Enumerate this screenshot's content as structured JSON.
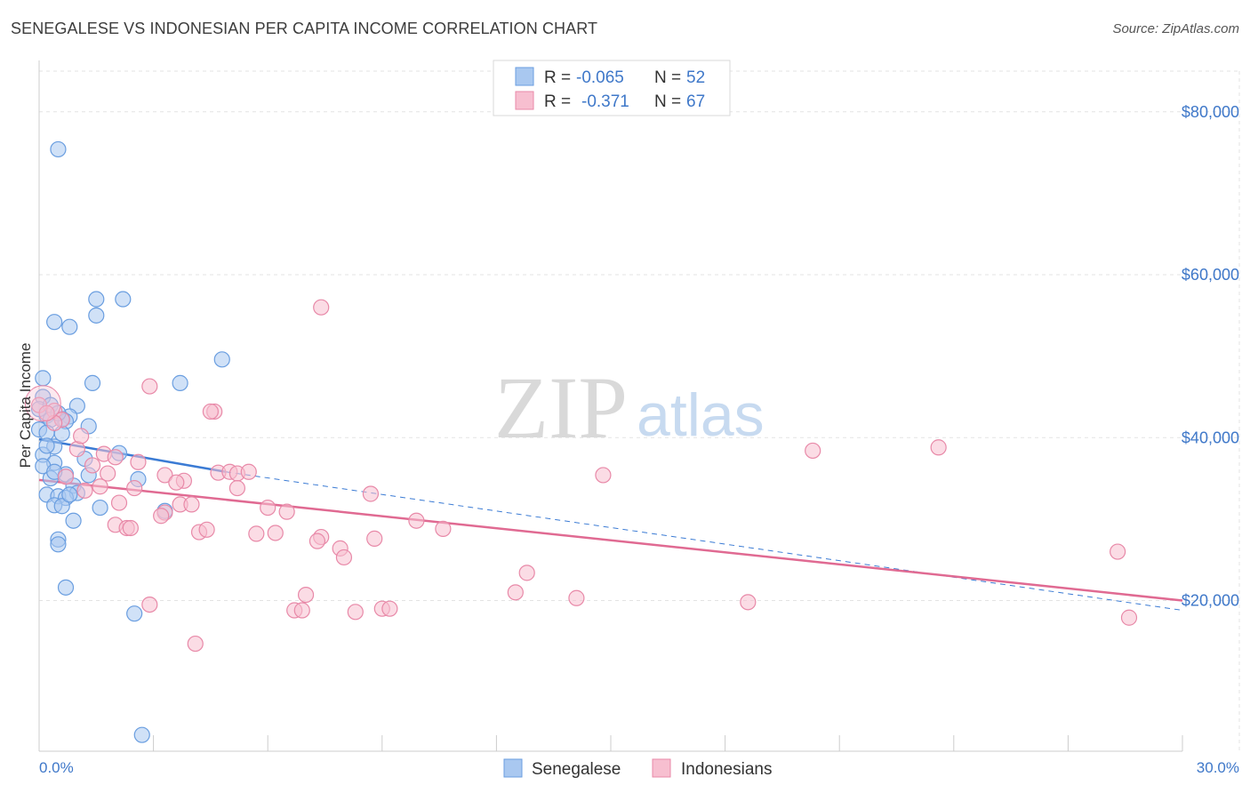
{
  "title": "SENEGALESE VS INDONESIAN PER CAPITA INCOME CORRELATION CHART",
  "source": "Source: ZipAtlas.com",
  "watermark": {
    "part1": "ZIP",
    "part2": "atlas"
  },
  "legend_top": [
    {
      "r_label": "R =",
      "r_value": "-0.065",
      "n_label": "N =",
      "n_value": "52",
      "color": "#a9c8f0",
      "stroke": "#6a9ee0"
    },
    {
      "r_label": "R =",
      "r_value": "-0.371",
      "n_label": "N =",
      "n_value": "67",
      "color": "#f7bfd0",
      "stroke": "#e889a8"
    }
  ],
  "legend_bottom": [
    {
      "label": "Senegalese",
      "color": "#a9c8f0",
      "stroke": "#6a9ee0"
    },
    {
      "label": "Indonesians",
      "color": "#f7bfd0",
      "stroke": "#e889a8"
    }
  ],
  "chart_data": {
    "type": "scatter",
    "title": "SENEGALESE VS INDONESIAN PER CAPITA INCOME CORRELATION CHART",
    "xlabel": "",
    "ylabel": "Per Capita Income",
    "xlim": [
      0,
      30
    ],
    "ylim": [
      1500,
      85000
    ],
    "x_tick_labels": [
      "0.0%",
      "30.0%"
    ],
    "y_ticks": [
      20000,
      40000,
      60000,
      80000
    ],
    "y_tick_labels": [
      "$20,000",
      "$40,000",
      "$60,000",
      "$80,000"
    ],
    "grid": true,
    "series": [
      {
        "name": "Senegalese",
        "color": "#6a9ee0",
        "fill": "#a9c8f0",
        "trend": {
          "x0": 0.0,
          "y0": 39800,
          "x1": 4.9,
          "y1": 35800,
          "dash_to_x": 30.0,
          "dash_to_y": 18800
        },
        "points": [
          [
            0.5,
            75400
          ],
          [
            1.5,
            57000
          ],
          [
            2.2,
            57000
          ],
          [
            1.5,
            55000
          ],
          [
            0.4,
            54200
          ],
          [
            0.8,
            53600
          ],
          [
            4.8,
            49600
          ],
          [
            0.1,
            47300
          ],
          [
            1.4,
            46700
          ],
          [
            3.7,
            46700
          ],
          [
            0.1,
            45000
          ],
          [
            1.0,
            43900
          ],
          [
            0.2,
            42700
          ],
          [
            0.8,
            42600
          ],
          [
            0.3,
            42200
          ],
          [
            0.6,
            42300
          ],
          [
            0.7,
            42000
          ],
          [
            1.3,
            41400
          ],
          [
            0.0,
            41000
          ],
          [
            0.2,
            40600
          ],
          [
            0.4,
            38900
          ],
          [
            0.1,
            37900
          ],
          [
            2.1,
            38100
          ],
          [
            1.2,
            37400
          ],
          [
            0.4,
            36900
          ],
          [
            0.7,
            35500
          ],
          [
            1.3,
            35400
          ],
          [
            0.3,
            35000
          ],
          [
            2.6,
            34900
          ],
          [
            0.9,
            34100
          ],
          [
            0.2,
            33000
          ],
          [
            1.0,
            33200
          ],
          [
            0.5,
            32800
          ],
          [
            0.7,
            32600
          ],
          [
            0.4,
            31700
          ],
          [
            0.6,
            31600
          ],
          [
            1.6,
            31400
          ],
          [
            3.3,
            31000
          ],
          [
            0.9,
            29800
          ],
          [
            0.5,
            27500
          ],
          [
            0.5,
            26900
          ],
          [
            0.7,
            21600
          ],
          [
            2.5,
            18400
          ],
          [
            2.7,
            3500
          ],
          [
            0.0,
            43500
          ],
          [
            0.3,
            44000
          ],
          [
            0.5,
            43000
          ],
          [
            0.1,
            36500
          ],
          [
            0.4,
            35800
          ],
          [
            0.8,
            33000
          ],
          [
            0.2,
            39000
          ],
          [
            0.6,
            40500
          ]
        ]
      },
      {
        "name": "Indonesians",
        "color": "#e889a8",
        "fill": "#f7bfd0",
        "trend": {
          "x0": 0.0,
          "y0": 34800,
          "x1": 30.0,
          "y1": 20000
        },
        "points": [
          [
            0.0,
            44000
          ],
          [
            0.4,
            43300
          ],
          [
            0.6,
            42200
          ],
          [
            0.4,
            41800
          ],
          [
            7.4,
            56000
          ],
          [
            2.9,
            46300
          ],
          [
            4.6,
            43200
          ],
          [
            4.5,
            43200
          ],
          [
            1.0,
            38600
          ],
          [
            1.7,
            38000
          ],
          [
            2.0,
            37600
          ],
          [
            2.6,
            37000
          ],
          [
            20.3,
            38400
          ],
          [
            23.6,
            38800
          ],
          [
            1.8,
            35600
          ],
          [
            3.3,
            35400
          ],
          [
            4.7,
            35700
          ],
          [
            5.0,
            35800
          ],
          [
            5.2,
            35600
          ],
          [
            5.5,
            35800
          ],
          [
            3.8,
            34700
          ],
          [
            3.6,
            34500
          ],
          [
            1.6,
            34000
          ],
          [
            1.2,
            33500
          ],
          [
            5.2,
            33800
          ],
          [
            8.7,
            33100
          ],
          [
            14.8,
            35400
          ],
          [
            2.1,
            32000
          ],
          [
            3.7,
            31800
          ],
          [
            4.0,
            31800
          ],
          [
            6.0,
            31400
          ],
          [
            6.5,
            30900
          ],
          [
            3.3,
            30800
          ],
          [
            3.2,
            30400
          ],
          [
            9.9,
            29800
          ],
          [
            2.0,
            29300
          ],
          [
            2.3,
            28900
          ],
          [
            2.4,
            28900
          ],
          [
            4.2,
            28400
          ],
          [
            4.4,
            28700
          ],
          [
            5.7,
            28200
          ],
          [
            6.2,
            28300
          ],
          [
            7.4,
            27800
          ],
          [
            7.3,
            27300
          ],
          [
            8.8,
            27600
          ],
          [
            10.6,
            28800
          ],
          [
            7.9,
            26400
          ],
          [
            8.0,
            25300
          ],
          [
            12.8,
            23400
          ],
          [
            28.3,
            26000
          ],
          [
            12.5,
            21000
          ],
          [
            14.1,
            20300
          ],
          [
            7.0,
            20700
          ],
          [
            18.6,
            19800
          ],
          [
            2.9,
            19500
          ],
          [
            6.7,
            18800
          ],
          [
            6.9,
            18800
          ],
          [
            8.3,
            18600
          ],
          [
            9.0,
            19000
          ],
          [
            9.2,
            19000
          ],
          [
            28.6,
            17900
          ],
          [
            4.1,
            14700
          ],
          [
            0.2,
            43000
          ],
          [
            1.1,
            40200
          ],
          [
            1.4,
            36600
          ],
          [
            0.7,
            35200
          ],
          [
            2.5,
            33800
          ]
        ]
      }
    ]
  }
}
